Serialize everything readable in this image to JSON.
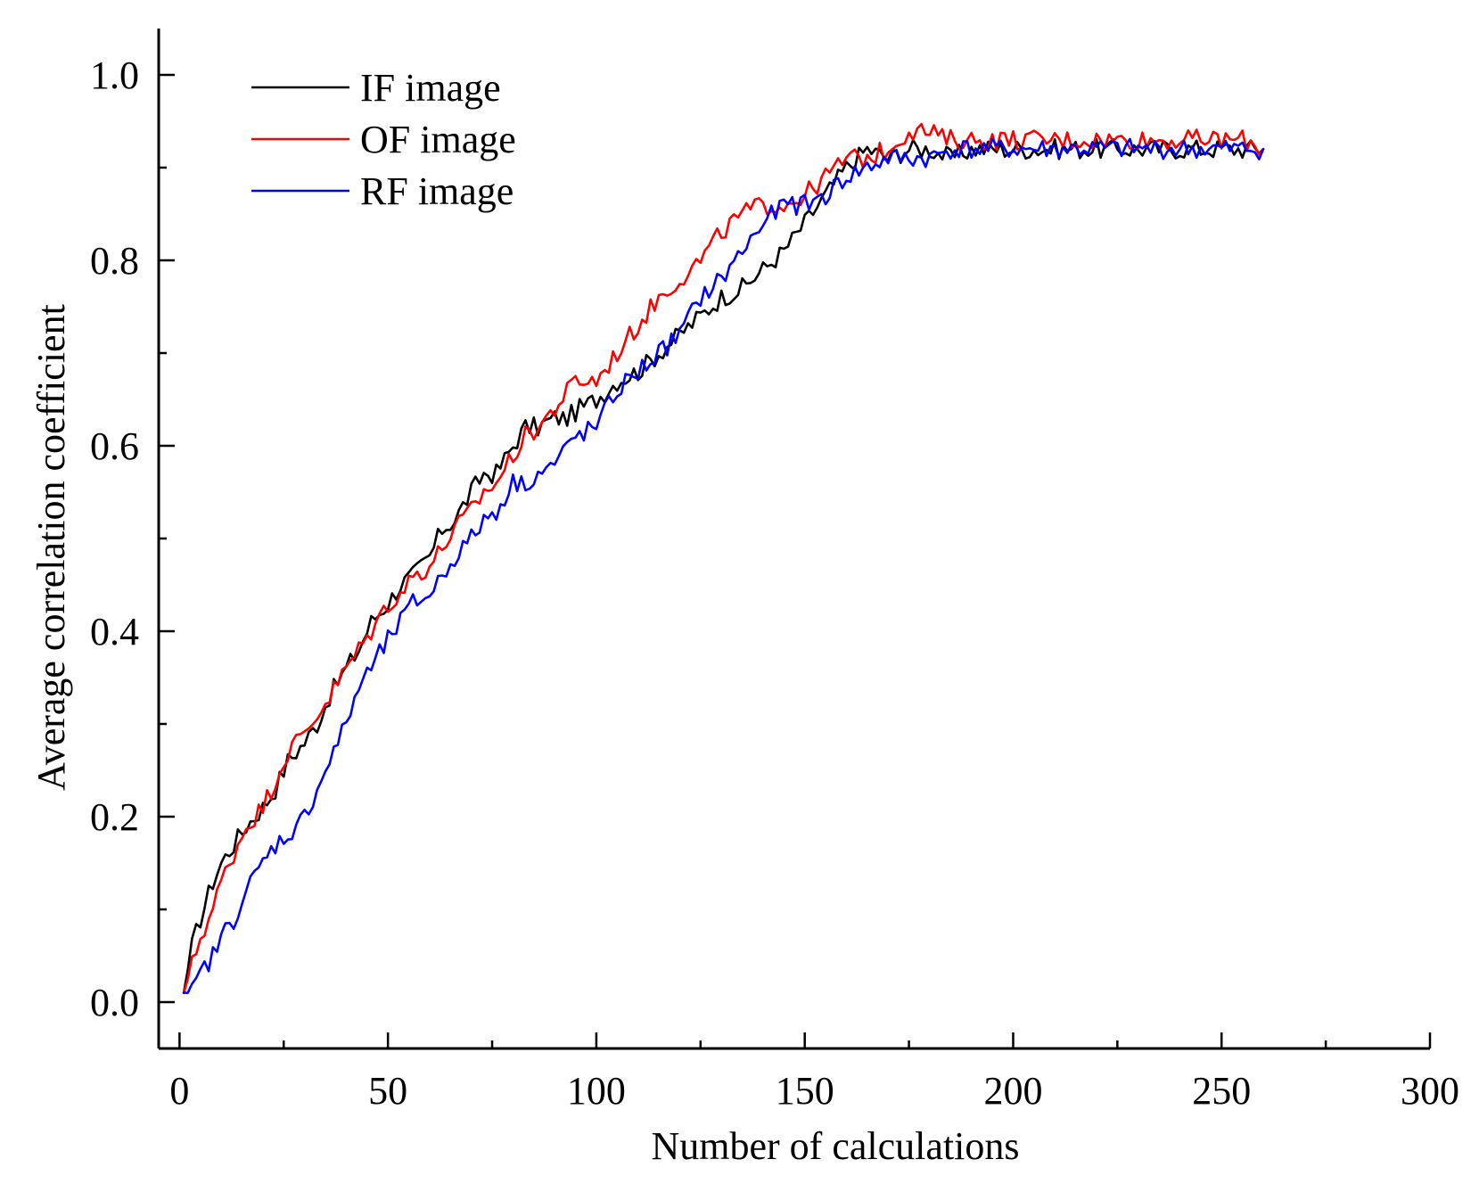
{
  "chart_data": {
    "type": "line",
    "title": "",
    "xlabel": "Number of calculations",
    "ylabel": "Average correlation coefficient",
    "xlim": [
      -5,
      300
    ],
    "ylim": [
      -0.05,
      1.05
    ],
    "xticks": [
      0,
      50,
      100,
      150,
      200,
      250,
      300
    ],
    "xtick_labels": [
      "0",
      "50",
      "100",
      "150",
      "200",
      "250",
      "300"
    ],
    "yticks": [
      0.0,
      0.2,
      0.4,
      0.6,
      0.8,
      1.0
    ],
    "ytick_labels": [
      "0.0",
      "0.2",
      "0.4",
      "0.6",
      "0.8",
      "1.0"
    ],
    "grid": false,
    "legend_position": "top-left",
    "series": [
      {
        "name": "IF image",
        "color": "#000000",
        "x": [
          1,
          3,
          5,
          8,
          10,
          13,
          16,
          20,
          23,
          26,
          30,
          33,
          36,
          40,
          43,
          46,
          50,
          53,
          56,
          60,
          63,
          66,
          70,
          73,
          76,
          80,
          83,
          86,
          90,
          93,
          96,
          100,
          105,
          110,
          115,
          120,
          125,
          130,
          135,
          140,
          145,
          150,
          155,
          160,
          165,
          170,
          175,
          180,
          185,
          190,
          200,
          210,
          220,
          230,
          240,
          250,
          255,
          260
        ],
        "y": [
          0.01,
          0.06,
          0.09,
          0.13,
          0.15,
          0.17,
          0.19,
          0.21,
          0.23,
          0.26,
          0.28,
          0.3,
          0.33,
          0.36,
          0.38,
          0.41,
          0.43,
          0.45,
          0.46,
          0.48,
          0.51,
          0.52,
          0.55,
          0.57,
          0.57,
          0.6,
          0.62,
          0.62,
          0.63,
          0.63,
          0.64,
          0.65,
          0.67,
          0.68,
          0.7,
          0.72,
          0.74,
          0.76,
          0.77,
          0.79,
          0.81,
          0.84,
          0.87,
          0.9,
          0.92,
          0.91,
          0.92,
          0.92,
          0.91,
          0.92,
          0.92,
          0.92,
          0.92,
          0.92,
          0.92,
          0.92,
          0.92,
          0.92
        ]
      },
      {
        "name": "OF image",
        "color": "#ff0000",
        "x": [
          1,
          3,
          5,
          8,
          10,
          13,
          16,
          20,
          23,
          26,
          30,
          33,
          36,
          40,
          43,
          46,
          50,
          53,
          56,
          60,
          63,
          66,
          70,
          73,
          76,
          80,
          83,
          86,
          90,
          95,
          100,
          105,
          110,
          115,
          120,
          125,
          130,
          135,
          140,
          145,
          150,
          155,
          160,
          165,
          170,
          175,
          178,
          185,
          190,
          200,
          210,
          220,
          230,
          240,
          250,
          255,
          260
        ],
        "y": [
          0.01,
          0.04,
          0.07,
          0.1,
          0.13,
          0.16,
          0.19,
          0.21,
          0.24,
          0.27,
          0.29,
          0.31,
          0.33,
          0.36,
          0.38,
          0.4,
          0.43,
          0.44,
          0.46,
          0.47,
          0.49,
          0.51,
          0.53,
          0.55,
          0.56,
          0.59,
          0.61,
          0.62,
          0.64,
          0.67,
          0.67,
          0.7,
          0.73,
          0.76,
          0.78,
          0.8,
          0.83,
          0.85,
          0.86,
          0.86,
          0.87,
          0.89,
          0.91,
          0.91,
          0.92,
          0.94,
          0.94,
          0.93,
          0.93,
          0.93,
          0.93,
          0.93,
          0.93,
          0.93,
          0.93,
          0.93,
          0.92
        ]
      },
      {
        "name": "RF image",
        "color": "#0000ff",
        "x": [
          1,
          3,
          5,
          8,
          10,
          13,
          16,
          20,
          23,
          26,
          30,
          33,
          36,
          40,
          43,
          46,
          50,
          53,
          56,
          60,
          63,
          66,
          70,
          73,
          76,
          80,
          83,
          86,
          90,
          95,
          100,
          105,
          110,
          115,
          120,
          125,
          130,
          135,
          140,
          145,
          150,
          155,
          160,
          165,
          170,
          175,
          180,
          185,
          190,
          200,
          210,
          220,
          230,
          240,
          250,
          255,
          260
        ],
        "y": [
          0.01,
          0.01,
          0.03,
          0.05,
          0.07,
          0.09,
          0.12,
          0.15,
          0.17,
          0.18,
          0.2,
          0.23,
          0.26,
          0.3,
          0.34,
          0.36,
          0.39,
          0.41,
          0.43,
          0.44,
          0.46,
          0.48,
          0.5,
          0.52,
          0.53,
          0.56,
          0.56,
          0.57,
          0.58,
          0.61,
          0.62,
          0.66,
          0.68,
          0.7,
          0.72,
          0.76,
          0.78,
          0.81,
          0.84,
          0.86,
          0.86,
          0.87,
          0.89,
          0.9,
          0.91,
          0.91,
          0.91,
          0.92,
          0.92,
          0.92,
          0.92,
          0.92,
          0.92,
          0.92,
          0.92,
          0.92,
          0.92
        ]
      }
    ]
  }
}
